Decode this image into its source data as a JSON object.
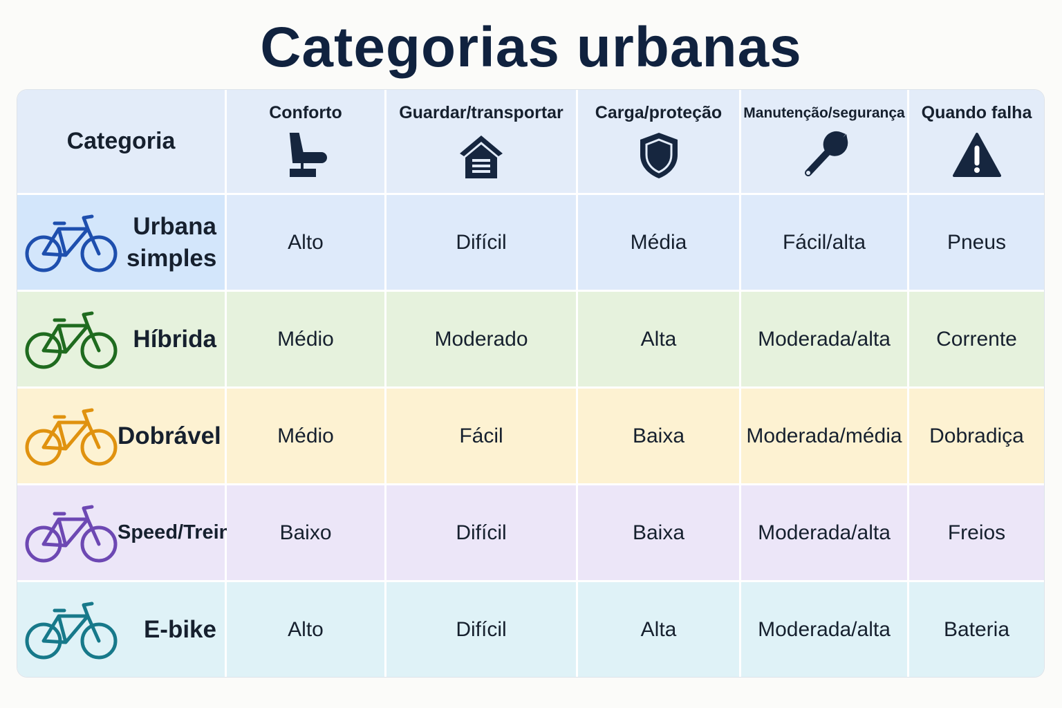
{
  "header": {
    "title": "Categorias urbanas"
  },
  "table": {
    "headers": [
      "Categoria",
      "Conforto",
      "Guardar/transportar",
      "Carga/proteção",
      "Manutenção/segurança",
      "Quando falha"
    ],
    "rows": [
      [
        "Urbana simples",
        "Alto",
        "Difícil",
        "Média",
        "Fácil/alta",
        "Pneus"
      ],
      [
        "Híbrida",
        "Médio",
        "Moderado",
        "Alta",
        "Moderada/alta",
        "Corrente"
      ],
      [
        "Dobrável",
        "Médio",
        "Fácil",
        "Baixa",
        "Moderada/média",
        "Dobradiça"
      ],
      [
        "Speed/Treino",
        "Baixo",
        "Difícil",
        "Baixa",
        "Moderada/alta",
        "Freios"
      ],
      [
        "E-bike",
        "Alto",
        "Difícil",
        "Alta",
        "Moderada/alta",
        "Bateria"
      ]
    ]
  }
}
